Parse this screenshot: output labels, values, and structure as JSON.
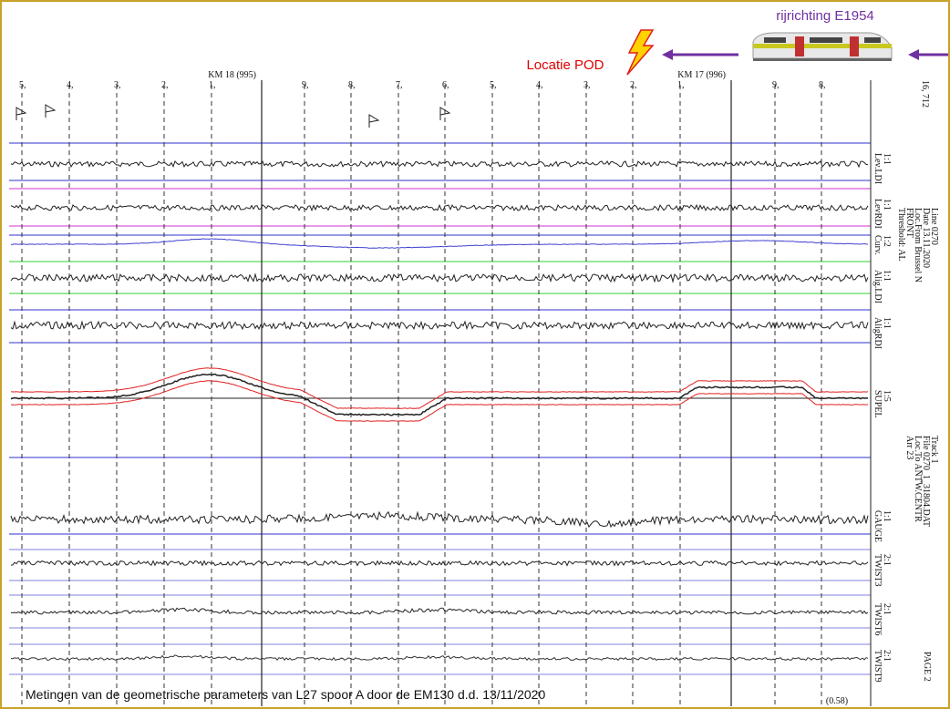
{
  "header": {
    "direction": "rijrichting E1954",
    "location": "Locatie POD"
  },
  "ruler": {
    "km_markers": [
      "KM 18 (995)",
      "KM 17 (996)"
    ],
    "ticks": [
      "5,",
      "4,",
      "3,",
      "2,",
      "1,",
      "9,",
      "8,",
      "7,",
      "6,",
      "5,",
      "4,",
      "3,",
      "2,",
      "1,",
      "9,",
      "8,"
    ],
    "corner": "16, 712"
  },
  "channels": [
    {
      "label": "Lev.LDI",
      "scale": "1:1"
    },
    {
      "label": "LevRDI",
      "scale": "1:1"
    },
    {
      "label": "Curv.",
      "scale": "1:2"
    },
    {
      "label": "Alig.LDI",
      "scale": "1:1"
    },
    {
      "label": "AligRDI",
      "scale": "1:1"
    },
    {
      "label": "SUPEL",
      "scale": "1:5"
    },
    {
      "label": "GAUGE",
      "scale": "1:1"
    },
    {
      "label": "TWIST3",
      "scale": "2:1"
    },
    {
      "label": "TWIST6",
      "scale": "2:1"
    },
    {
      "label": "TWIST9",
      "scale": "2:1"
    }
  ],
  "info_top": [
    "Line  0270",
    "Date  13.11.2020",
    "Loc.From  Brussel N",
    "FRONT",
    "Threshold: AL"
  ],
  "info_bottom": [
    "Track  1",
    "File  0270_1_31804.DAT",
    "Loc.To  ANTW.CENTR",
    "Arr  23"
  ],
  "page": "PAGE 2",
  "footnote": "(0.58)",
  "caption": "Metingen van de geometrische parameters van L27 spoor A door de EM130 d.d. 13/11/2020"
}
